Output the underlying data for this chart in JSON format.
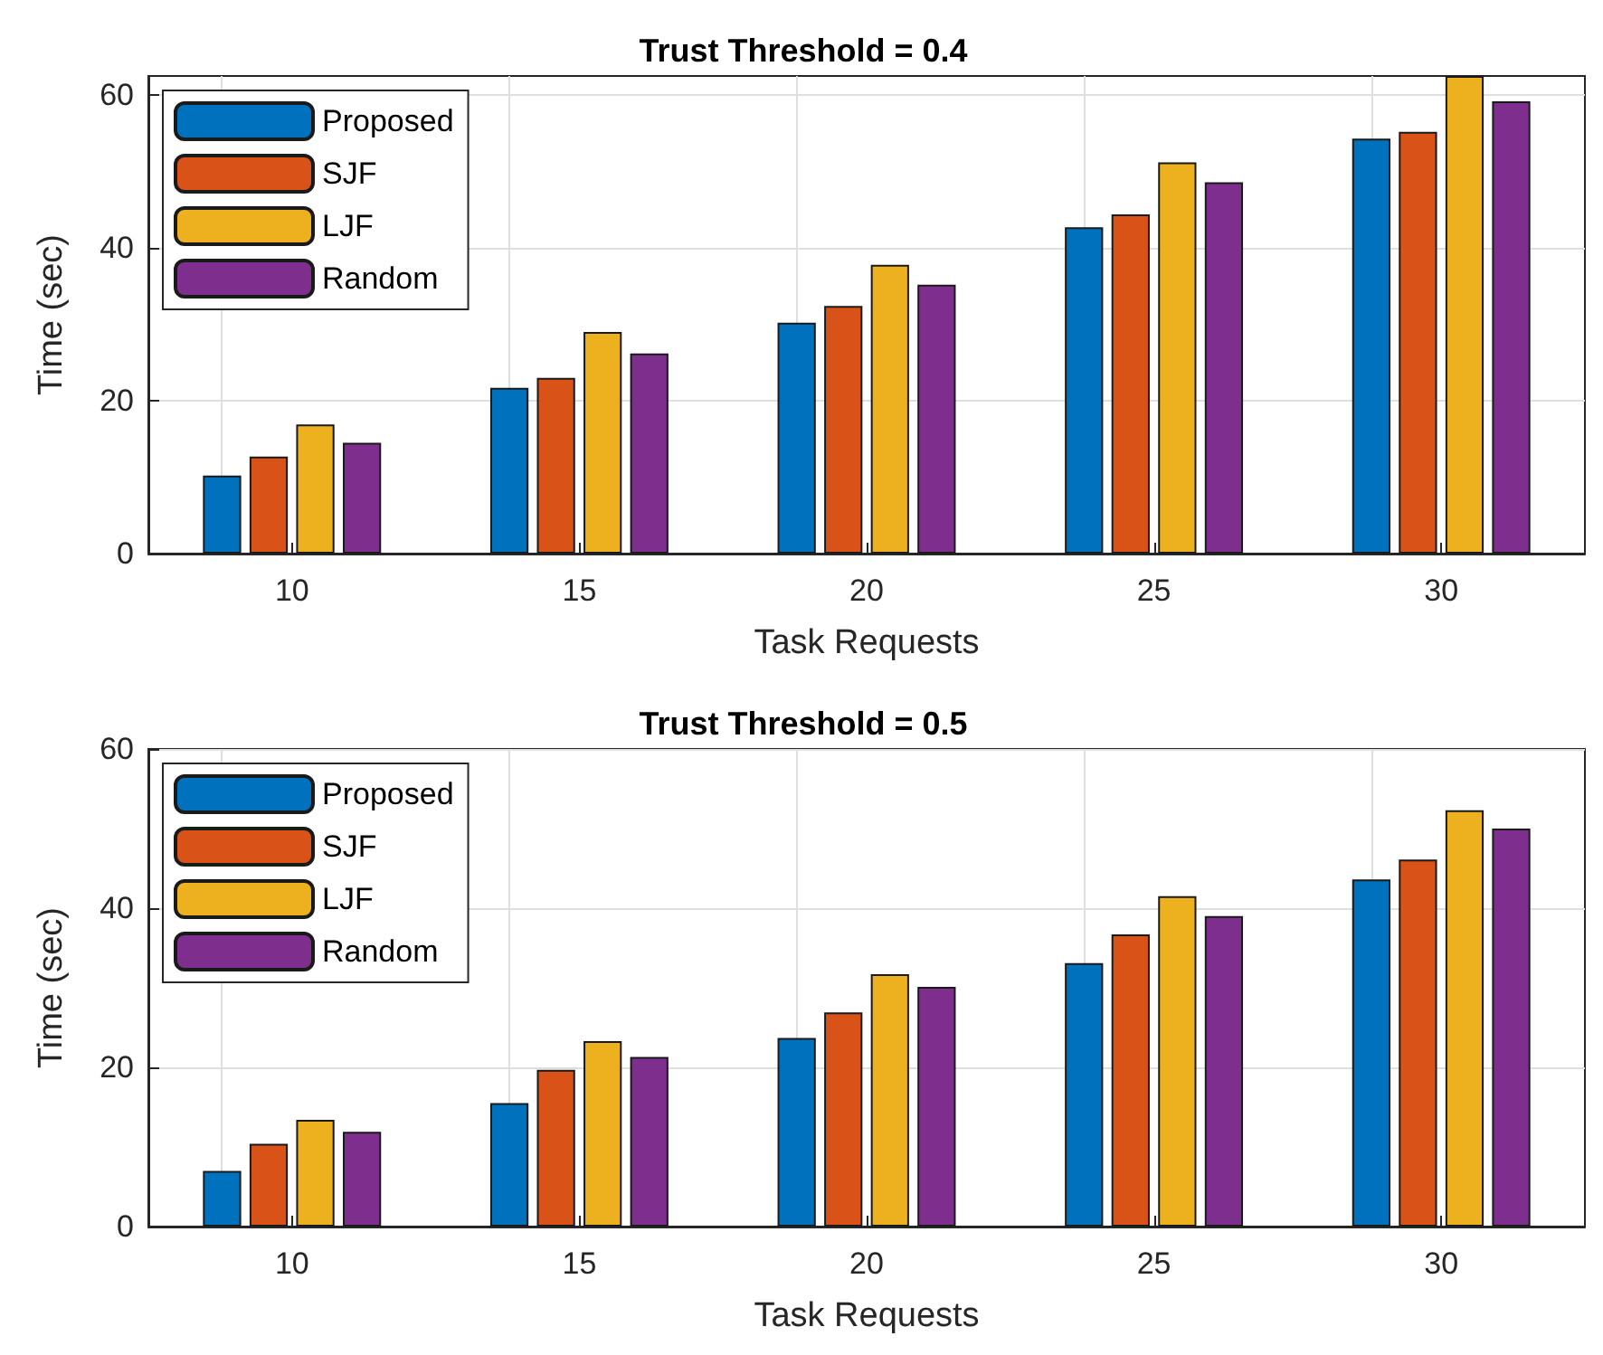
{
  "chart_data": [
    {
      "type": "bar",
      "title": "Trust Threshold = 0.4",
      "xlabel": "Task Requests",
      "ylabel": "Time (sec)",
      "categories": [
        "10",
        "15",
        "20",
        "25",
        "30"
      ],
      "series": [
        {
          "name": "Proposed",
          "color": "#0072bd",
          "values": [
            10.2,
            21.7,
            30.2,
            42.7,
            54.3
          ]
        },
        {
          "name": "SJF",
          "color": "#d95319",
          "values": [
            12.7,
            23.0,
            32.4,
            44.4,
            55.2
          ]
        },
        {
          "name": "LJF",
          "color": "#edb120",
          "values": [
            16.9,
            29.0,
            37.8,
            51.2,
            62.5
          ]
        },
        {
          "name": "Random",
          "color": "#7e2f8e",
          "values": [
            14.5,
            26.2,
            35.2,
            48.6,
            59.2
          ]
        }
      ],
      "ylim": [
        0,
        62.5
      ],
      "yticks": [
        0,
        20,
        40,
        60
      ],
      "grid": true,
      "legend": "top left"
    },
    {
      "type": "bar",
      "title": "Trust Threshold = 0.5",
      "xlabel": "Task Requests",
      "ylabel": "Time (sec)",
      "categories": [
        "10",
        "15",
        "20",
        "25",
        "30"
      ],
      "series": [
        {
          "name": "Proposed",
          "color": "#0072bd",
          "values": [
            7.0,
            15.5,
            23.7,
            33.1,
            43.6
          ]
        },
        {
          "name": "SJF",
          "color": "#d95319",
          "values": [
            10.4,
            19.7,
            26.9,
            36.7,
            46.1
          ]
        },
        {
          "name": "LJF",
          "color": "#edb120",
          "values": [
            13.4,
            23.3,
            31.7,
            41.5,
            52.3
          ]
        },
        {
          "name": "Random",
          "color": "#7e2f8e",
          "values": [
            11.9,
            21.3,
            30.1,
            39.0,
            50.0
          ]
        }
      ],
      "ylim": [
        0,
        60
      ],
      "yticks": [
        0,
        20,
        40,
        60
      ],
      "grid": true,
      "legend": "top left"
    }
  ]
}
